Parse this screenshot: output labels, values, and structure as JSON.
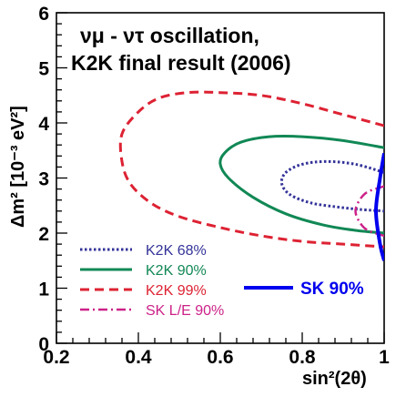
{
  "chart_data": {
    "type": "line",
    "title_line1": "νμ - ντ oscillation,",
    "title_line2": "K2K final result (2006)",
    "xlabel": "sin²(2θ)",
    "ylabel": "Δm² [10⁻³ eV²]",
    "xlim": [
      0.2,
      1.0
    ],
    "ylim": [
      0,
      6
    ],
    "xticks": [
      0.2,
      0.4,
      0.6,
      0.8,
      1
    ],
    "xtick_labels": [
      "0.2",
      "0.4",
      "0.6",
      "0.8",
      "1"
    ],
    "yticks": [
      0,
      1,
      2,
      3,
      4,
      5,
      6
    ],
    "ytick_labels": [
      "0",
      "1",
      "2",
      "3",
      "4",
      "5",
      "6"
    ],
    "grid": false,
    "legend_position": "lower-left",
    "series": [
      {
        "name": "K2K 68%",
        "color": "#333399",
        "style": "dotted",
        "x": [
          1.0,
          0.93,
          0.86,
          0.8,
          0.76,
          0.75,
          0.77,
          0.82,
          0.88,
          0.94,
          1.0
        ],
        "y": [
          3.1,
          3.25,
          3.3,
          3.25,
          3.1,
          2.9,
          2.7,
          2.55,
          2.48,
          2.43,
          2.4
        ]
      },
      {
        "name": "K2K 90%",
        "color": "#118855",
        "style": "solid",
        "x": [
          1.0,
          0.9,
          0.8,
          0.72,
          0.65,
          0.61,
          0.6,
          0.62,
          0.68,
          0.76,
          0.85,
          0.93,
          1.0
        ],
        "y": [
          3.55,
          3.68,
          3.75,
          3.75,
          3.65,
          3.45,
          3.25,
          3.0,
          2.65,
          2.35,
          2.15,
          2.05,
          2.0
        ]
      },
      {
        "name": "K2K 99%",
        "color": "#dd2233",
        "style": "dashed",
        "x": [
          1.0,
          0.9,
          0.8,
          0.7,
          0.6,
          0.52,
          0.45,
          0.4,
          0.36,
          0.36,
          0.38,
          0.43,
          0.5,
          0.6,
          0.7,
          0.8,
          0.9,
          1.0
        ],
        "y": [
          3.95,
          4.15,
          4.35,
          4.5,
          4.55,
          4.55,
          4.45,
          4.2,
          3.8,
          3.3,
          2.9,
          2.55,
          2.3,
          2.1,
          1.95,
          1.85,
          1.8,
          1.75
        ]
      },
      {
        "name": "SK L/E 90%",
        "color": "#cc2288",
        "style": "dashdot",
        "x": [
          1.0,
          0.96,
          0.94,
          0.93,
          0.94,
          0.96,
          1.0
        ],
        "y": [
          2.85,
          2.75,
          2.6,
          2.4,
          2.2,
          2.05,
          1.95
        ]
      },
      {
        "name": "SK 90%",
        "color": "#0000ee",
        "style": "solid-thick",
        "x": [
          1.0,
          0.99,
          0.98,
          0.99,
          1.0
        ],
        "y": [
          3.45,
          3.0,
          2.4,
          1.8,
          1.5
        ]
      }
    ],
    "sk_label": "SK 90%"
  }
}
